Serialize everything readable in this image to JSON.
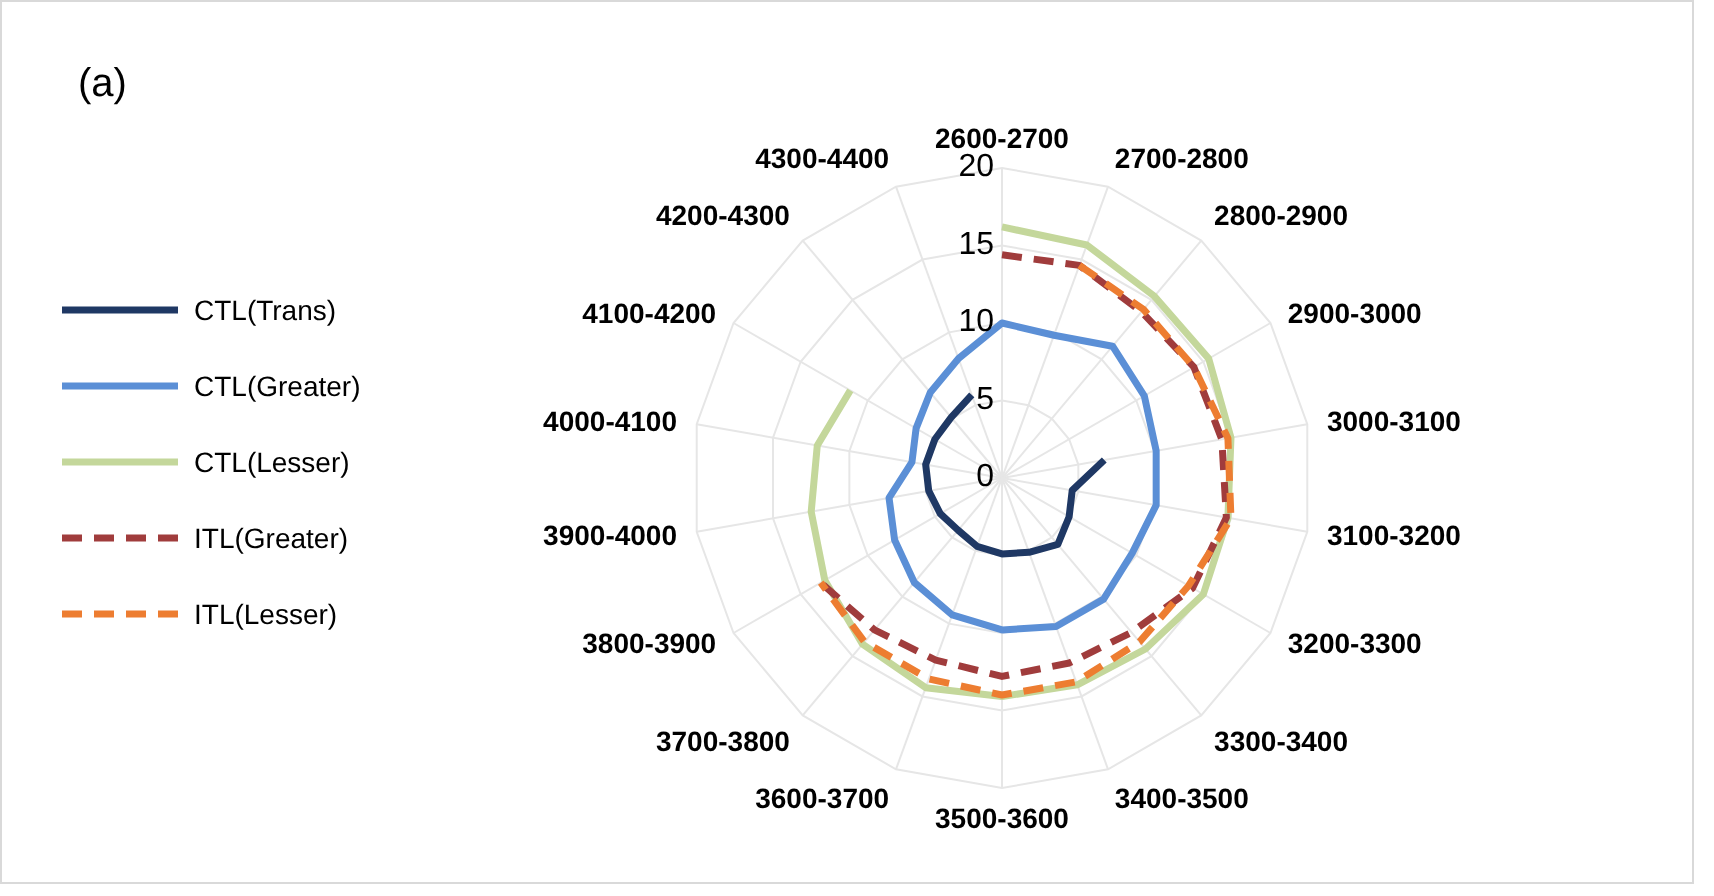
{
  "chart_data": {
    "type": "radar",
    "title": "(a)",
    "categories": [
      "2600-2700",
      "2700-2800",
      "2800-2900",
      "2900-3000",
      "3000-3100",
      "3100-3200",
      "3200-3300",
      "3300-3400",
      "3400-3500",
      "3500-3600",
      "3600-3700",
      "3700-3800",
      "3800-3900",
      "3900-4000",
      "4000-4100",
      "4100-4200",
      "4200-4300",
      "4300-4400"
    ],
    "series": [
      {
        "name": "CTL(Trans)",
        "color": "#1f3864",
        "line_style": "solid",
        "values": [
          null,
          null,
          null,
          null,
          6.7,
          4.6,
          5.0,
          5.6,
          5.1,
          4.9,
          4.7,
          4.4,
          4.6,
          4.8,
          5.0,
          5.0,
          5.1,
          5.7
        ]
      },
      {
        "name": "CTL(Greater)",
        "color": "#5b8fd6",
        "line_style": "solid",
        "values": [
          10.0,
          9.8,
          11.1,
          10.6,
          10.1,
          10.1,
          9.7,
          10.2,
          10.2,
          9.8,
          9.4,
          8.8,
          8.0,
          7.4,
          5.9,
          6.4,
          7.2,
          8.2
        ]
      },
      {
        "name": "CTL(Lesser)",
        "color": "#c4d79b",
        "line_style": "solid",
        "values": [
          16.2,
          16.0,
          15.3,
          15.4,
          15.0,
          14.8,
          15.0,
          14.4,
          14.2,
          14.1,
          14.4,
          14.0,
          13.2,
          12.5,
          12.1,
          11.3,
          null,
          null
        ]
      },
      {
        "name": "ITL(Greater)",
        "color": "#a03c3c",
        "line_style": "dashed",
        "values": [
          14.4,
          14.6,
          14.0,
          14.3,
          14.4,
          14.7,
          14.2,
          13.0,
          12.7,
          12.8,
          12.5,
          12.8,
          13.5,
          null,
          null,
          null,
          null,
          null
        ]
      },
      {
        "name": "ITL(Lesser)",
        "color": "#ed7d31",
        "line_style": "dashed",
        "values": [
          null,
          14.6,
          14.2,
          14.3,
          14.8,
          15.0,
          13.9,
          13.8,
          14.0,
          14.0,
          13.8,
          13.8,
          13.5,
          null,
          null,
          null,
          null,
          null
        ]
      }
    ],
    "ylim": [
      0,
      20
    ],
    "yticks": [
      0,
      5,
      10,
      15,
      20
    ],
    "grid": true,
    "legend": "left"
  }
}
